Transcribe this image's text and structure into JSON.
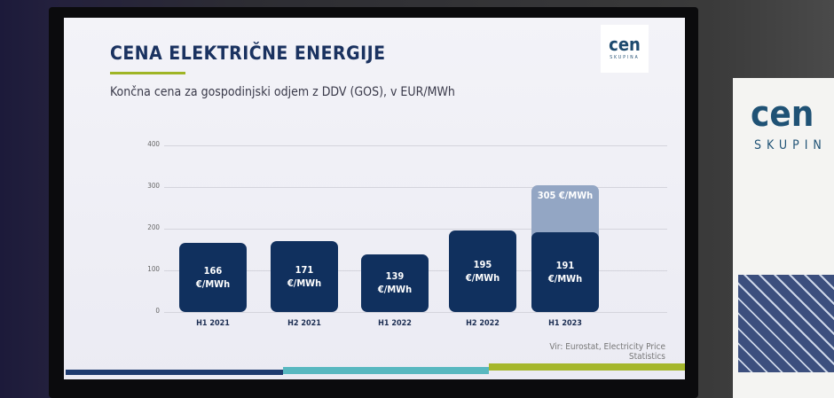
{
  "header": {
    "title": "CENA ELEKTRIČNE ENERGIJE",
    "subtitle": "Končna cena za gospodinjski odjem z DDV (GOS), v EUR/MWh",
    "logo": "cen",
    "logo_sub": "SKUPINA"
  },
  "poster": {
    "logo": "cen",
    "logo_sub": "SKUPIN"
  },
  "chart_data": {
    "type": "bar",
    "categories": [
      "H1 2021",
      "H2 2021",
      "H1 2022",
      "H2 2022",
      "H1 2023"
    ],
    "series": [
      {
        "color": "#10305e",
        "values": [
          166,
          171,
          139,
          195,
          191
        ],
        "value_labels": [
          "166 €/MWh",
          "171 €/MWh",
          "139 €/MWh",
          "195 €/MWh",
          "191 €/MWh"
        ]
      },
      {
        "color": "#93a6c4",
        "values": [
          null,
          null,
          null,
          null,
          305
        ],
        "value_labels": [
          null,
          null,
          null,
          null,
          "305 €/MWh"
        ]
      }
    ],
    "ylim": [
      0,
      400
    ],
    "yticks": [
      0,
      100,
      200,
      300,
      400
    ],
    "grid": true,
    "source": "Vir: Eurostat, Electricity Price Statistics"
  }
}
